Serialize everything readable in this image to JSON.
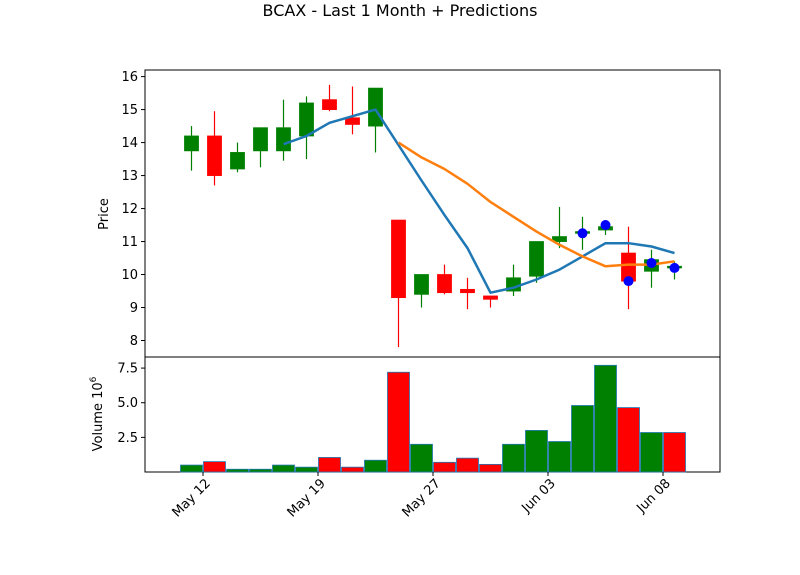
{
  "chart_data": {
    "type": "candlestick",
    "title": "BCAX - Last 1 Month + Predictions",
    "price_panel": {
      "ylabel": "Price",
      "ylim": [
        7.5,
        16.2
      ],
      "yticks": [
        8,
        9,
        10,
        11,
        12,
        13,
        14,
        15,
        16
      ],
      "candles": [
        {
          "i": 0,
          "open": 13.75,
          "high": 14.5,
          "low": 13.15,
          "close": 14.2
        },
        {
          "i": 1,
          "open": 14.2,
          "high": 14.95,
          "low": 12.7,
          "close": 13.0
        },
        {
          "i": 2,
          "open": 13.2,
          "high": 14.0,
          "low": 13.1,
          "close": 13.7
        },
        {
          "i": 3,
          "open": 13.75,
          "high": 14.45,
          "low": 13.25,
          "close": 14.45
        },
        {
          "i": 4,
          "open": 13.75,
          "high": 15.3,
          "low": 13.45,
          "close": 14.45
        },
        {
          "i": 5,
          "open": 14.2,
          "high": 15.4,
          "low": 13.5,
          "close": 15.2
        },
        {
          "i": 6,
          "open": 15.3,
          "high": 15.75,
          "low": 14.95,
          "close": 15.0
        },
        {
          "i": 7,
          "open": 14.75,
          "high": 15.7,
          "low": 14.25,
          "close": 14.55
        },
        {
          "i": 8,
          "open": 14.5,
          "high": 15.65,
          "low": 13.7,
          "close": 15.65
        },
        {
          "i": 9,
          "open": 11.65,
          "high": 11.65,
          "low": 7.8,
          "close": 9.3
        },
        {
          "i": 10,
          "open": 9.4,
          "high": 10.0,
          "low": 9.0,
          "close": 10.0
        },
        {
          "i": 11,
          "open": 10.0,
          "high": 10.3,
          "low": 9.4,
          "close": 9.45
        },
        {
          "i": 12,
          "open": 9.55,
          "high": 9.9,
          "low": 8.95,
          "close": 9.45
        },
        {
          "i": 13,
          "open": 9.35,
          "high": 9.35,
          "low": 9.0,
          "close": 9.25
        },
        {
          "i": 14,
          "open": 9.5,
          "high": 10.3,
          "low": 9.35,
          "close": 9.9
        },
        {
          "i": 15,
          "open": 9.95,
          "high": 11.0,
          "low": 9.75,
          "close": 11.0
        },
        {
          "i": 16,
          "open": 11.0,
          "high": 12.05,
          "low": 10.8,
          "close": 11.15
        },
        {
          "i": 17,
          "open": 11.25,
          "high": 11.75,
          "low": 10.75,
          "close": 11.3
        },
        {
          "i": 18,
          "open": 11.35,
          "high": 11.65,
          "low": 11.2,
          "close": 11.45
        },
        {
          "i": 19,
          "open": 10.65,
          "high": 11.45,
          "low": 8.95,
          "close": 9.8
        },
        {
          "i": 20,
          "open": 10.1,
          "high": 10.75,
          "low": 9.6,
          "close": 10.45
        },
        {
          "i": 21,
          "open": 10.2,
          "high": 10.4,
          "low": 9.85,
          "close": 10.25
        }
      ],
      "predictions": [
        {
          "i": 17,
          "value": 11.25
        },
        {
          "i": 18,
          "value": 11.5
        },
        {
          "i": 19,
          "value": 9.8
        },
        {
          "i": 20,
          "value": 10.35
        },
        {
          "i": 21,
          "value": 10.2
        }
      ],
      "lines": [
        {
          "color": "#1f77b4",
          "points": [
            {
              "i": 4,
              "value": 13.95
            },
            {
              "i": 5,
              "value": 14.2
            },
            {
              "i": 6,
              "value": 14.6
            },
            {
              "i": 7,
              "value": 14.8
            },
            {
              "i": 8,
              "value": 15.0
            },
            {
              "i": 10,
              "value": 12.85
            },
            {
              "i": 11,
              "value": 11.8
            },
            {
              "i": 12,
              "value": 10.8
            },
            {
              "i": 13,
              "value": 9.45
            },
            {
              "i": 14,
              "value": 9.6
            },
            {
              "i": 15,
              "value": 9.85
            },
            {
              "i": 16,
              "value": 10.15
            },
            {
              "i": 17,
              "value": 10.55
            },
            {
              "i": 18,
              "value": 10.95
            },
            {
              "i": 19,
              "value": 10.95
            },
            {
              "i": 20,
              "value": 10.85
            },
            {
              "i": 21,
              "value": 10.65
            }
          ]
        },
        {
          "color": "#ff7f0e",
          "points": [
            {
              "i": 9,
              "value": 14.0
            },
            {
              "i": 10,
              "value": 13.55
            },
            {
              "i": 11,
              "value": 13.2
            },
            {
              "i": 12,
              "value": 12.75
            },
            {
              "i": 13,
              "value": 12.2
            },
            {
              "i": 14,
              "value": 11.75
            },
            {
              "i": 15,
              "value": 11.3
            },
            {
              "i": 16,
              "value": 10.9
            },
            {
              "i": 17,
              "value": 10.55
            },
            {
              "i": 18,
              "value": 10.25
            },
            {
              "i": 19,
              "value": 10.3
            },
            {
              "i": 20,
              "value": 10.3
            },
            {
              "i": 21,
              "value": 10.4
            }
          ]
        }
      ]
    },
    "volume_panel": {
      "ylabel": "Volume  10",
      "ylabel_exponent": "6",
      "ylim": [
        0,
        8.3
      ],
      "yticks": [
        "2.5",
        "5.0",
        "7.5"
      ],
      "ytick_values": [
        2.5,
        5.0,
        7.5
      ],
      "bars": [
        0.5,
        0.75,
        0.2,
        0.2,
        0.5,
        0.35,
        1.05,
        0.35,
        0.85,
        7.2,
        2.0,
        0.7,
        1.0,
        0.55,
        2.0,
        3.0,
        2.2,
        4.8,
        7.7,
        4.65,
        2.85,
        2.85
      ],
      "bar_colors": [
        "green",
        "red",
        "green",
        "green",
        "green",
        "green",
        "red",
        "red",
        "green",
        "red",
        "green",
        "red",
        "red",
        "red",
        "green",
        "green",
        "green",
        "green",
        "green",
        "red",
        "green",
        "red"
      ]
    },
    "x_ticks": [
      {
        "i": 0.5,
        "label": "May 12"
      },
      {
        "i": 5.5,
        "label": "May 19"
      },
      {
        "i": 10.5,
        "label": "May 27"
      },
      {
        "i": 15.5,
        "label": "Jun 03"
      },
      {
        "i": 20.5,
        "label": "Jun 08"
      }
    ],
    "colors": {
      "up": "#008000",
      "down": "#ff0000",
      "prediction_marker": "#0000ff",
      "volume_edge": "#1f77b4"
    }
  }
}
